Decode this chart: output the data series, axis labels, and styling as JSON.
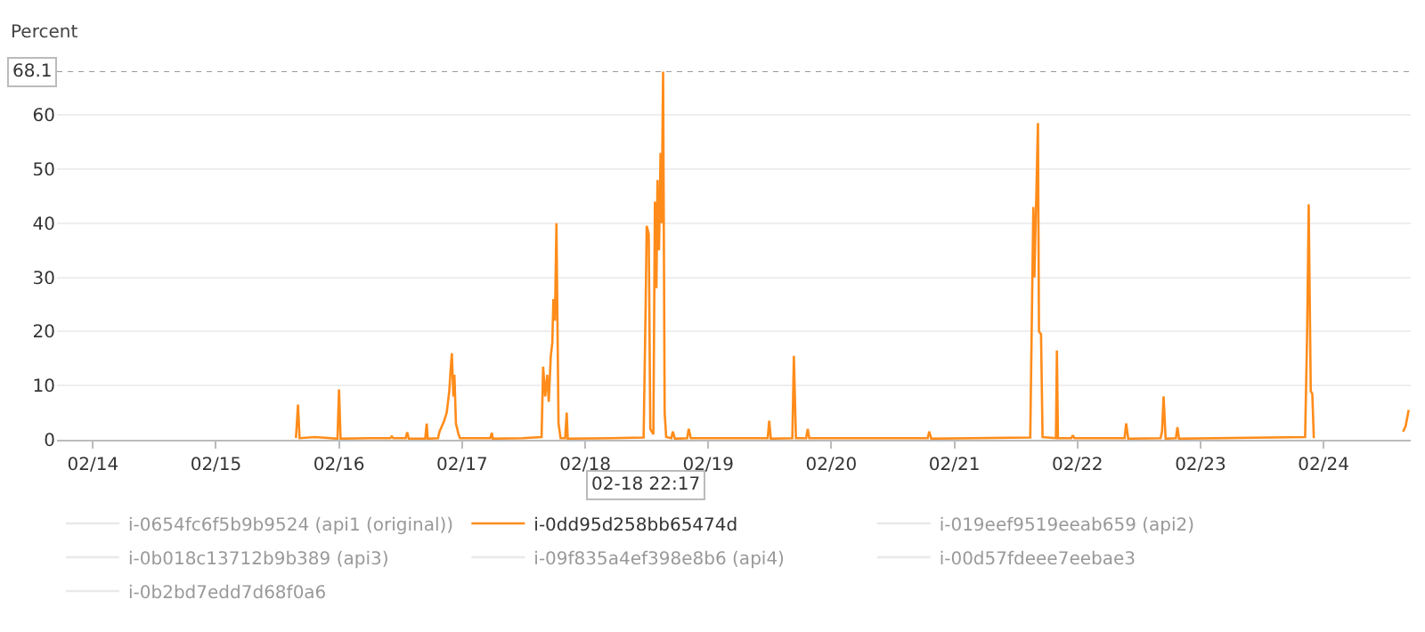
{
  "chart_data": {
    "type": "line",
    "ylabel": "Percent",
    "xlim": [
      "--02-13T17:00",
      "--02-24T17:00"
    ],
    "xticks": [
      {
        "value": "--02-14",
        "label": "02/14"
      },
      {
        "value": "--02-15",
        "label": "02/15"
      },
      {
        "value": "--02-16",
        "label": "02/16"
      },
      {
        "value": "--02-17",
        "label": "02/17"
      },
      {
        "value": "--02-18",
        "label": "02/18"
      },
      {
        "value": "--02-19",
        "label": "02/19"
      },
      {
        "value": "--02-20",
        "label": "02/20"
      },
      {
        "value": "--02-21",
        "label": "02/21"
      },
      {
        "value": "--02-22",
        "label": "02/22"
      },
      {
        "value": "--02-23",
        "label": "02/23"
      },
      {
        "value": "--02-24",
        "label": "02/24"
      }
    ],
    "ylim": [
      0,
      68.1
    ],
    "yticks": [
      0,
      10,
      20,
      30,
      40,
      50,
      60
    ],
    "grid": "y",
    "legend": "bottom",
    "marker": "none",
    "line_style": "solid",
    "ref_lines": [
      {
        "axis": "y",
        "value": 68.1,
        "label": "68.1",
        "color": "#9a9a9a",
        "line_style": "dotted"
      }
    ],
    "annotations": [
      "02-18 22:17"
    ],
    "series": [
      {
        "name": "i-0654fc6f5b9b9524 (api1 (original))",
        "color": "#d5d5d5"
      },
      {
        "name": "i-0dd95d258bb65474d",
        "color": "#ff8c1a",
        "x": [
          "--02-15T15:36",
          "--02-15T16:00",
          "--02-15T16:18",
          "--02-15T19:18",
          "--02-15T23:42",
          "--02-16T00:00",
          "--02-16T00:18",
          "--02-16T05:42",
          "--02-16T10:00",
          "--02-16T10:18",
          "--02-16T10:36",
          "--02-16T13:00",
          "--02-16T13:18",
          "--02-16T13:36",
          "--02-16T16:48",
          "--02-16T17:06",
          "--02-16T17:18",
          "--02-16T19:18",
          "--02-16T19:36",
          "--02-16T20:30",
          "--02-16T21:00",
          "--02-16T21:30",
          "--02-16T21:42",
          "--02-16T22:00",
          "--02-16T22:18",
          "--02-16T22:30",
          "--02-16T22:48",
          "--02-16T23:18",
          "--02-16T23:36",
          "--02-17T05:30",
          "--02-17T05:48",
          "--02-17T06:00",
          "--02-17T11:48",
          "--02-17T15:30",
          "--02-17T15:48",
          "--02-17T16:12",
          "--02-17T16:36",
          "--02-17T16:54",
          "--02-17T17:18",
          "--02-17T17:36",
          "--02-17T17:48",
          "--02-17T18:06",
          "--02-17T18:24",
          "--02-17T18:48",
          "--02-17T19:12",
          "--02-17T20:06",
          "--02-17T20:24",
          "--02-17T20:36",
          "--02-18T05:12",
          "--02-18T11:24",
          "--02-18T11:48",
          "--02-18T12:00",
          "--02-18T12:24",
          "--02-18T12:42",
          "--02-18T13:18",
          "--02-18T13:36",
          "--02-18T13:54",
          "--02-18T14:06",
          "--02-18T14:24",
          "--02-18T14:42",
          "--02-18T14:54",
          "--02-18T15:12",
          "--02-18T15:30",
          "--02-18T15:48",
          "--02-18T16:48",
          "--02-18T17:06",
          "--02-18T17:30",
          "--02-18T19:54",
          "--02-18T20:12",
          "--02-18T20:36",
          "--02-19T11:36",
          "--02-19T11:54",
          "--02-19T12:12",
          "--02-19T16:24",
          "--02-19T16:42",
          "--02-19T17:06",
          "--02-19T19:06",
          "--02-19T19:24",
          "--02-19T19:42",
          "--02-20T18:48",
          "--02-20T19:06",
          "--02-20T19:30",
          "--02-21T14:48",
          "--02-21T15:24",
          "--02-21T15:36",
          "--02-21T16:00",
          "--02-21T16:18",
          "--02-21T16:30",
          "--02-21T16:54",
          "--02-21T17:12",
          "--02-21T19:48",
          "--02-21T20:00",
          "--02-21T20:12",
          "--02-21T22:48",
          "--02-21T23:06",
          "--02-21T23:24",
          "--02-22T09:12",
          "--02-22T09:30",
          "--02-22T09:54",
          "--02-22T16:12",
          "--02-22T16:30",
          "--02-22T16:48",
          "--02-22T17:12",
          "--02-22T19:12",
          "--02-22T19:30",
          "--02-22T19:48",
          "--02-23T20:24",
          "--02-23T20:48",
          "--02-23T21:06",
          "--02-23T21:30",
          "--02-23T21:48",
          "--02-23T22:06",
          "--02-24T06:00",
          "--02-24T15:30",
          "--02-24T16:00",
          "--02-24T16:36"
        ],
        "values": [
          0.3,
          6.5,
          0.3,
          0.5,
          0.2,
          9.3,
          0.2,
          0.3,
          0.3,
          0.6,
          0.3,
          0.3,
          1.4,
          0.2,
          0.2,
          3,
          0.2,
          0.3,
          1.5,
          3.5,
          5,
          9,
          12,
          16,
          8,
          12,
          3,
          1,
          0.3,
          0.3,
          1.3,
          0.2,
          0.3,
          0.5,
          13.5,
          8,
          12,
          7,
          15.5,
          18,
          26,
          22,
          40,
          3,
          0.3,
          0.3,
          5,
          0.2,
          0.3,
          0.4,
          25,
          39.5,
          38,
          2,
          1,
          44,
          28,
          48,
          35,
          53,
          40,
          68,
          5,
          0.5,
          0.3,
          1.5,
          0.2,
          0.3,
          2,
          0.3,
          0.3,
          3.5,
          0.2,
          0.3,
          15.5,
          0.3,
          0.3,
          2,
          0.3,
          0.3,
          1.5,
          0.2,
          0.4,
          43,
          30,
          46,
          58.5,
          20,
          19.5,
          0.5,
          0.3,
          16.5,
          0.3,
          0.3,
          0.8,
          0.3,
          0.3,
          3,
          0.2,
          0.3,
          1.5,
          8,
          0.2,
          0.3,
          2.3,
          0.2,
          0.5,
          20,
          43.5,
          9,
          8.5,
          0.3,
          null,
          1.5,
          2.5,
          5.5
        ]
      },
      {
        "name": "i-019eef9519eeab659 (api2)",
        "color": "#d5d5d5"
      },
      {
        "name": "i-0b018c13712b9b389 (api3)",
        "color": "#d5d5d5"
      },
      {
        "name": "i-09f835a4ef398e8b6 (api4)",
        "color": "#d5d5d5"
      },
      {
        "name": "i-00d57fdeee7eebae3",
        "color": "#d5d5d5"
      },
      {
        "name": "i-0b2bd7edd7d68f0a6",
        "color": "#d5d5d5"
      }
    ]
  }
}
